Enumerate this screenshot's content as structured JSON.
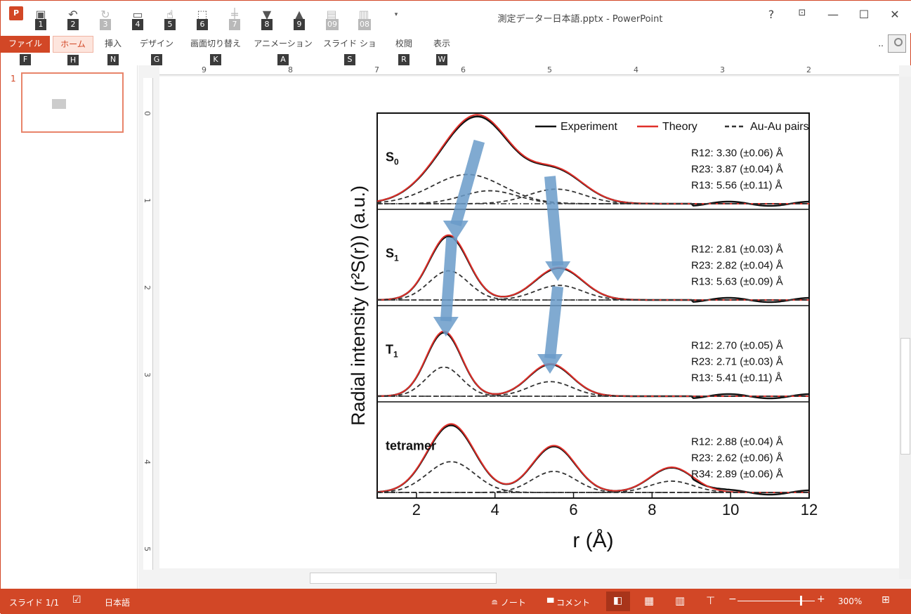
{
  "window": {
    "title": "測定データー日本語.pptx - PowerPoint",
    "help": "?",
    "controls": [
      "minimize-icon",
      "maximize-icon",
      "close-icon"
    ]
  },
  "qat": [
    {
      "icon": "save-icon",
      "key": "1"
    },
    {
      "icon": "undo-icon",
      "key": "2"
    },
    {
      "icon": "redo-icon",
      "key": "3"
    },
    {
      "icon": "present-icon",
      "key": "4"
    },
    {
      "icon": "touch-mode-icon",
      "key": "5"
    },
    {
      "icon": "shapes-icon",
      "key": "6"
    },
    {
      "icon": "align-icon",
      "key": "7"
    },
    {
      "icon": "send-back-icon",
      "key": "8"
    },
    {
      "icon": "bring-front-icon",
      "key": "9"
    },
    {
      "icon": "group-icon",
      "key": "09"
    },
    {
      "icon": "ungroup-icon",
      "key": "08"
    }
  ],
  "tabs": [
    {
      "label": "ファイル",
      "key": "F"
    },
    {
      "label": "ホーム",
      "key": "H"
    },
    {
      "label": "挿入",
      "key": "N"
    },
    {
      "label": "デザイン",
      "key": "G"
    },
    {
      "label": "画面切り替え",
      "key": "K"
    },
    {
      "label": "アニメーション",
      "key": "A"
    },
    {
      "label": "スライド ショー",
      "key": "S"
    },
    {
      "label": "校閲",
      "key": "R"
    },
    {
      "label": "表示",
      "key": "W"
    }
  ],
  "account": "..",
  "thumbnail": {
    "number": "1"
  },
  "ruler": {
    "h": [
      "9",
      "8",
      "7",
      "6",
      "5",
      "4",
      "3",
      "2"
    ],
    "v": [
      "0",
      "1",
      "2",
      "3",
      "4",
      "5"
    ]
  },
  "chart_data": {
    "type": "line",
    "xlabel": "r (Å)",
    "ylabel": "Radial intensity (r²S(r)) (a.u.)",
    "xlim": [
      1,
      12
    ],
    "x_ticks": [
      "2",
      "4",
      "6",
      "8",
      "10",
      "12"
    ],
    "legend": [
      "Experiment",
      "Theory",
      "Au-Au pairs"
    ],
    "legend_position": "top-right",
    "colors": {
      "experiment": "#111111",
      "theory": "#e0302a",
      "pairs": "#333333",
      "arrow": "#6a9bc9"
    },
    "panels": [
      {
        "label": "S0",
        "sub": "0",
        "base": "S",
        "peaks": [
          {
            "x": 3.3,
            "h": 0.9,
            "w": 0.9
          },
          {
            "x": 3.87,
            "h": 0.4,
            "w": 0.7
          },
          {
            "x": 5.56,
            "h": 0.45,
            "w": 0.7
          }
        ],
        "annot": [
          "R12: 3.30 (±0.06) Å",
          "R23: 3.87 (±0.04) Å",
          "R13: 5.56 (±0.11) Å"
        ]
      },
      {
        "label": "S1",
        "sub": "1",
        "base": "S",
        "peaks": [
          {
            "x": 2.82,
            "h": 0.9,
            "w": 0.5
          },
          {
            "x": 5.63,
            "h": 0.45,
            "w": 0.6
          }
        ],
        "annot": [
          "R12: 2.81 (±0.03) Å",
          "R23: 2.82 (±0.04) Å",
          "R13: 5.63 (±0.09) Å"
        ]
      },
      {
        "label": "T1",
        "sub": "1",
        "base": "T",
        "peaks": [
          {
            "x": 2.7,
            "h": 0.9,
            "w": 0.45
          },
          {
            "x": 5.41,
            "h": 0.45,
            "w": 0.55
          }
        ],
        "annot": [
          "R12: 2.70 (±0.05) Å",
          "R23: 2.71 (±0.03) Å",
          "R13: 5.41 (±0.11) Å"
        ]
      },
      {
        "label": "tetramer",
        "sub": "",
        "base": "tetramer",
        "peaks": [
          {
            "x": 2.88,
            "h": 0.95,
            "w": 0.6
          },
          {
            "x": 5.5,
            "h": 0.65,
            "w": 0.55
          },
          {
            "x": 8.5,
            "h": 0.35,
            "w": 0.55
          }
        ],
        "annot": [
          "R12: 2.88 (±0.04) Å",
          "R23: 2.62 (±0.06) Å",
          "R34: 2.89 (±0.06) Å"
        ]
      }
    ]
  },
  "status": {
    "slide": "スライド 1/1",
    "lang": "日本語",
    "notes": "ノート",
    "comments": "コメント",
    "zoom": "300%"
  }
}
